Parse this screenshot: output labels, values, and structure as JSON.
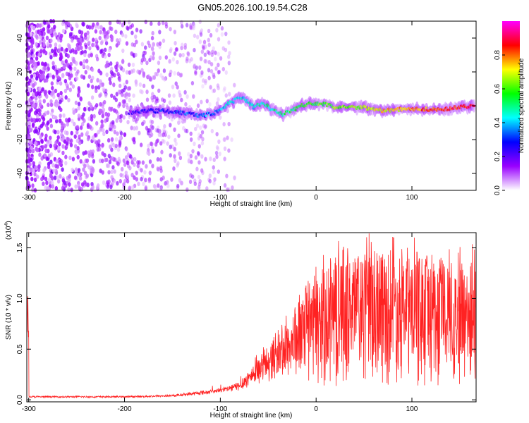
{
  "title": "GN05.2026.100.19.54.C28",
  "chart_data": [
    {
      "type": "heatmap",
      "name": "spectrogram",
      "xlabel": "Height of straight line (km)",
      "ylabel": "Frequency (Hz)",
      "xlim": [
        -302,
        167
      ],
      "ylim": [
        -50,
        50
      ],
      "x_ticks": [
        -300,
        -200,
        -100,
        0,
        100
      ],
      "y_ticks": [
        -40,
        -20,
        0,
        20,
        40
      ],
      "colorbar": {
        "label": "Normalized spectral amplitude",
        "range": [
          0,
          1
        ],
        "ticks": [
          0.0,
          0.2,
          0.4,
          0.6,
          0.8
        ],
        "tick_labels": [
          "0.0",
          "0.2",
          "0.4",
          "0.6",
          "0.8"
        ],
        "colormap": [
          "#ffffff",
          "#9900ff",
          "#0000ff",
          "#00ffff",
          "#00ff00",
          "#ffff00",
          "#ff0000",
          "#ff00ff"
        ]
      },
      "signal_track": {
        "description": "narrow tone near 0 Hz",
        "points": [
          [
            -195,
            -4
          ],
          [
            -180,
            -3
          ],
          [
            -160,
            -3
          ],
          [
            -140,
            -4
          ],
          [
            -120,
            -6
          ],
          [
            -105,
            -4
          ],
          [
            -95,
            0
          ],
          [
            -88,
            2
          ],
          [
            -80,
            5
          ],
          [
            -72,
            3
          ],
          [
            -65,
            -1
          ],
          [
            -55,
            2
          ],
          [
            -45,
            -3
          ],
          [
            -35,
            -5
          ],
          [
            -25,
            -3
          ],
          [
            -15,
            0
          ],
          [
            -5,
            2
          ],
          [
            0,
            1
          ],
          [
            10,
            1
          ],
          [
            20,
            -1
          ],
          [
            35,
            -1
          ],
          [
            50,
            -1
          ],
          [
            70,
            -3
          ],
          [
            90,
            -2
          ],
          [
            110,
            -2
          ],
          [
            130,
            -2
          ],
          [
            150,
            -1
          ],
          [
            165,
            0
          ]
        ],
        "noise_region_end_km": -85
      }
    },
    {
      "type": "line",
      "name": "snr",
      "xlabel": "Height of straight line (km)",
      "ylabel": "SNR (10 * v/v)",
      "multiplier": "(x10",
      "multiplier_exp": "4",
      "multiplier_close": ")",
      "xlim": [
        -302,
        167
      ],
      "ylim": [
        -0.02,
        1.65
      ],
      "x_ticks": [
        -300,
        -200,
        -100,
        0,
        100
      ],
      "y_ticks": [
        0.0,
        0.5,
        1.0,
        1.5
      ],
      "y_tick_labels": [
        "0.0",
        "0.5",
        "1.0",
        "1.5"
      ],
      "color": "#ff2222",
      "envelope": [
        [
          -300,
          0.03
        ],
        [
          -200,
          0.03
        ],
        [
          -150,
          0.04
        ],
        [
          -130,
          0.06
        ],
        [
          -110,
          0.08
        ],
        [
          -95,
          0.1
        ],
        [
          -80,
          0.14
        ],
        [
          -70,
          0.22
        ],
        [
          -60,
          0.3
        ],
        [
          -50,
          0.38
        ],
        [
          -40,
          0.45
        ],
        [
          -30,
          0.52
        ],
        [
          -20,
          0.6
        ],
        [
          -10,
          0.68
        ],
        [
          0,
          0.76
        ],
        [
          10,
          0.8
        ],
        [
          20,
          0.85
        ],
        [
          30,
          0.88
        ],
        [
          40,
          0.9
        ],
        [
          55,
          0.9
        ],
        [
          70,
          0.9
        ],
        [
          85,
          0.88
        ],
        [
          100,
          0.87
        ],
        [
          115,
          0.87
        ],
        [
          130,
          0.86
        ],
        [
          145,
          0.85
        ],
        [
          160,
          0.85
        ],
        [
          167,
          0.85
        ]
      ],
      "peak_value": 1.6,
      "peak_x": 81
    }
  ]
}
